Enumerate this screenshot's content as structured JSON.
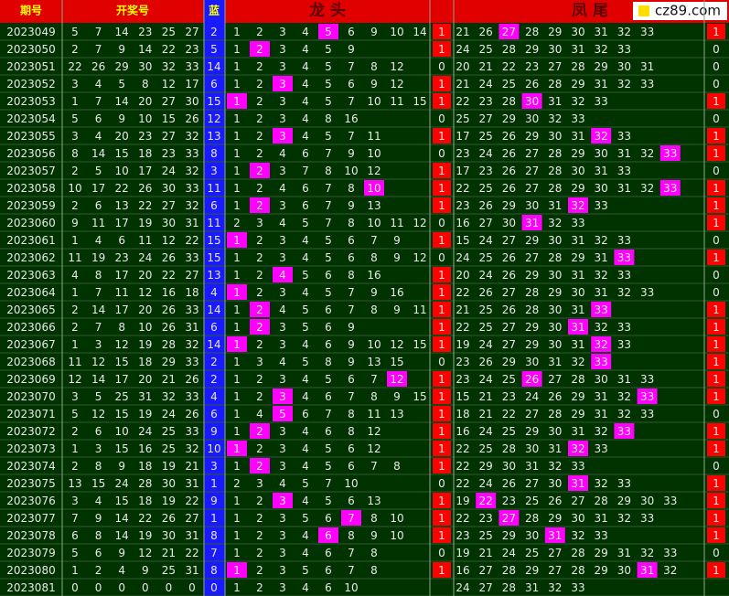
{
  "header": {
    "issue": "期号",
    "draw": "开奖号",
    "blue": "蓝",
    "head": "龙 头",
    "tail": "凤 尾",
    "logo": "cz89.com"
  },
  "rows": [
    {
      "issue": "2023049",
      "draw": [
        5,
        7,
        14,
        23,
        25,
        27
      ],
      "blue": 2,
      "head": [
        1,
        2,
        3,
        4,
        5,
        6,
        9,
        10,
        14
      ],
      "head_hit": 4,
      "head_flag": 1,
      "tail": [
        21,
        26,
        27,
        28,
        29,
        30,
        31,
        32,
        33
      ],
      "tail_hit": 2,
      "tail_flag": 1
    },
    {
      "issue": "2023050",
      "draw": [
        2,
        7,
        9,
        14,
        22,
        23
      ],
      "blue": 5,
      "head": [
        1,
        2,
        3,
        4,
        5,
        9
      ],
      "head_hit": 1,
      "head_flag": 1,
      "tail": [
        24,
        25,
        28,
        29,
        30,
        31,
        32,
        33
      ],
      "tail_hit": null,
      "tail_flag": 0
    },
    {
      "issue": "2023051",
      "draw": [
        22,
        26,
        29,
        30,
        32,
        33
      ],
      "blue": 14,
      "head": [
        1,
        2,
        3,
        4,
        5,
        7,
        8,
        12
      ],
      "head_hit": null,
      "head_flag": 0,
      "tail": [
        20,
        21,
        22,
        23,
        27,
        28,
        29,
        30,
        31
      ],
      "tail_hit": null,
      "tail_flag": 0
    },
    {
      "issue": "2023052",
      "draw": [
        3,
        4,
        5,
        8,
        12,
        17
      ],
      "blue": 6,
      "head": [
        1,
        2,
        3,
        4,
        5,
        6,
        9,
        12
      ],
      "head_hit": 2,
      "head_flag": 1,
      "tail": [
        21,
        24,
        25,
        26,
        28,
        29,
        31,
        32,
        33
      ],
      "tail_hit": null,
      "tail_flag": 0
    },
    {
      "issue": "2023053",
      "draw": [
        1,
        7,
        14,
        20,
        27,
        30
      ],
      "blue": 15,
      "head": [
        1,
        2,
        3,
        4,
        5,
        7,
        10,
        11,
        15
      ],
      "head_hit": 0,
      "head_flag": 1,
      "tail": [
        22,
        23,
        28,
        30,
        31,
        32,
        33
      ],
      "tail_hit": 3,
      "tail_flag": 1
    },
    {
      "issue": "2023054",
      "draw": [
        5,
        6,
        9,
        10,
        15,
        26
      ],
      "blue": 12,
      "head": [
        1,
        2,
        3,
        4,
        8,
        16
      ],
      "head_hit": null,
      "head_flag": 0,
      "tail": [
        25,
        27,
        29,
        30,
        32,
        33
      ],
      "tail_hit": null,
      "tail_flag": 0
    },
    {
      "issue": "2023055",
      "draw": [
        3,
        4,
        20,
        23,
        27,
        32
      ],
      "blue": 13,
      "head": [
        1,
        2,
        3,
        4,
        5,
        7,
        11
      ],
      "head_hit": 2,
      "head_flag": 1,
      "tail": [
        17,
        25,
        26,
        29,
        30,
        31,
        32,
        33
      ],
      "tail_hit": 6,
      "tail_flag": 1
    },
    {
      "issue": "2023056",
      "draw": [
        8,
        14,
        15,
        18,
        23,
        33
      ],
      "blue": 8,
      "head": [
        1,
        2,
        4,
        6,
        7,
        9,
        10
      ],
      "head_hit": null,
      "head_flag": 0,
      "tail": [
        23,
        24,
        26,
        27,
        28,
        29,
        30,
        31,
        32,
        33
      ],
      "tail_hit": 9,
      "tail_flag": 1
    },
    {
      "issue": "2023057",
      "draw": [
        2,
        5,
        10,
        17,
        24,
        32
      ],
      "blue": 3,
      "head": [
        1,
        2,
        3,
        7,
        8,
        10,
        12
      ],
      "head_hit": 1,
      "head_flag": 1,
      "tail": [
        17,
        23,
        26,
        27,
        28,
        30,
        31,
        33
      ],
      "tail_hit": null,
      "tail_flag": 0
    },
    {
      "issue": "2023058",
      "draw": [
        10,
        17,
        22,
        26,
        30,
        33
      ],
      "blue": 11,
      "head": [
        1,
        2,
        4,
        6,
        7,
        8,
        10
      ],
      "head_hit": 6,
      "head_flag": 1,
      "tail": [
        22,
        25,
        26,
        27,
        28,
        29,
        30,
        31,
        32,
        33
      ],
      "tail_hit": 9,
      "tail_flag": 1
    },
    {
      "issue": "2023059",
      "draw": [
        2,
        6,
        13,
        22,
        27,
        32
      ],
      "blue": 6,
      "head": [
        1,
        2,
        3,
        6,
        7,
        9,
        13
      ],
      "head_hit": 1,
      "head_flag": 1,
      "tail": [
        23,
        26,
        29,
        30,
        31,
        32,
        33
      ],
      "tail_hit": 5,
      "tail_flag": 1
    },
    {
      "issue": "2023060",
      "draw": [
        9,
        11,
        17,
        19,
        30,
        31
      ],
      "blue": 11,
      "head": [
        2,
        3,
        4,
        5,
        7,
        8,
        10,
        11,
        12
      ],
      "head_hit": null,
      "head_flag": 0,
      "tail": [
        16,
        27,
        30,
        31,
        32,
        33
      ],
      "tail_hit": 3,
      "tail_flag": 1
    },
    {
      "issue": "2023061",
      "draw": [
        1,
        4,
        6,
        11,
        12,
        22
      ],
      "blue": 15,
      "head": [
        1,
        2,
        3,
        4,
        5,
        6,
        7,
        9
      ],
      "head_hit": 0,
      "head_flag": 1,
      "tail": [
        15,
        24,
        27,
        29,
        30,
        31,
        32,
        33
      ],
      "tail_hit": null,
      "tail_flag": 0
    },
    {
      "issue": "2023062",
      "draw": [
        11,
        19,
        23,
        24,
        26,
        33
      ],
      "blue": 15,
      "head": [
        1,
        2,
        3,
        4,
        5,
        6,
        8,
        9,
        12
      ],
      "head_hit": null,
      "head_flag": 0,
      "tail": [
        24,
        25,
        26,
        27,
        28,
        29,
        31,
        33
      ],
      "tail_hit": 7,
      "tail_flag": 1
    },
    {
      "issue": "2023063",
      "draw": [
        4,
        8,
        17,
        20,
        22,
        27
      ],
      "blue": 13,
      "head": [
        1,
        2,
        4,
        5,
        6,
        8,
        16
      ],
      "head_hit": 2,
      "head_flag": 1,
      "tail": [
        20,
        24,
        26,
        29,
        30,
        31,
        32,
        33
      ],
      "tail_hit": null,
      "tail_flag": 0
    },
    {
      "issue": "2023064",
      "draw": [
        1,
        7,
        11,
        12,
        16,
        18
      ],
      "blue": 4,
      "head": [
        1,
        2,
        3,
        4,
        5,
        7,
        9,
        16
      ],
      "head_hit": 0,
      "head_flag": 1,
      "tail": [
        22,
        26,
        27,
        28,
        29,
        30,
        31,
        32,
        33
      ],
      "tail_hit": null,
      "tail_flag": 0
    },
    {
      "issue": "2023065",
      "draw": [
        2,
        14,
        17,
        20,
        26,
        33
      ],
      "blue": 14,
      "head": [
        1,
        2,
        4,
        5,
        6,
        7,
        8,
        9,
        11
      ],
      "head_hit": 1,
      "head_flag": 1,
      "tail": [
        21,
        25,
        26,
        28,
        30,
        31,
        33
      ],
      "tail_hit": 6,
      "tail_flag": 1
    },
    {
      "issue": "2023066",
      "draw": [
        2,
        7,
        8,
        10,
        26,
        31
      ],
      "blue": 6,
      "head": [
        1,
        2,
        3,
        5,
        6,
        9
      ],
      "head_hit": 1,
      "head_flag": 1,
      "tail": [
        22,
        25,
        27,
        29,
        30,
        31,
        32,
        33
      ],
      "tail_hit": 5,
      "tail_flag": 1
    },
    {
      "issue": "2023067",
      "draw": [
        1,
        3,
        12,
        19,
        28,
        32
      ],
      "blue": 14,
      "head": [
        1,
        2,
        3,
        4,
        6,
        9,
        10,
        12,
        15
      ],
      "head_hit": 0,
      "head_flag": 1,
      "tail": [
        19,
        24,
        27,
        29,
        30,
        31,
        32,
        33
      ],
      "tail_hit": 6,
      "tail_flag": 1
    },
    {
      "issue": "2023068",
      "draw": [
        11,
        12,
        15,
        18,
        29,
        33
      ],
      "blue": 2,
      "head": [
        1,
        3,
        4,
        5,
        8,
        9,
        13,
        15
      ],
      "head_hit": null,
      "head_flag": 0,
      "tail": [
        23,
        26,
        29,
        30,
        31,
        32,
        33
      ],
      "tail_hit": 6,
      "tail_flag": 1
    },
    {
      "issue": "2023069",
      "draw": [
        12,
        14,
        17,
        20,
        21,
        26
      ],
      "blue": 2,
      "head": [
        1,
        2,
        3,
        4,
        5,
        6,
        7,
        12
      ],
      "head_hit": 7,
      "head_flag": 1,
      "tail": [
        23,
        24,
        25,
        26,
        27,
        28,
        30,
        31,
        33
      ],
      "tail_hit": 3,
      "tail_flag": 1
    },
    {
      "issue": "2023070",
      "draw": [
        3,
        5,
        25,
        31,
        32,
        33
      ],
      "blue": 4,
      "head": [
        1,
        2,
        3,
        4,
        6,
        7,
        8,
        9,
        15
      ],
      "head_hit": 2,
      "head_flag": 1,
      "tail": [
        15,
        21,
        23,
        24,
        26,
        29,
        31,
        32,
        33
      ],
      "tail_hit": 8,
      "tail_flag": 1
    },
    {
      "issue": "2023071",
      "draw": [
        5,
        12,
        15,
        19,
        24,
        26
      ],
      "blue": 6,
      "head": [
        1,
        4,
        5,
        6,
        7,
        8,
        11,
        13
      ],
      "head_hit": 2,
      "head_flag": 1,
      "tail": [
        18,
        21,
        22,
        27,
        28,
        29,
        31,
        32,
        33
      ],
      "tail_hit": null,
      "tail_flag": 0
    },
    {
      "issue": "2023072",
      "draw": [
        2,
        6,
        10,
        24,
        25,
        33
      ],
      "blue": 9,
      "head": [
        1,
        2,
        3,
        4,
        6,
        8,
        12
      ],
      "head_hit": 1,
      "head_flag": 1,
      "tail": [
        16,
        24,
        25,
        29,
        30,
        31,
        32,
        33
      ],
      "tail_hit": 7,
      "tail_flag": 1
    },
    {
      "issue": "2023073",
      "draw": [
        1,
        3,
        15,
        16,
        25,
        32
      ],
      "blue": 10,
      "head": [
        1,
        2,
        3,
        4,
        5,
        6,
        12
      ],
      "head_hit": 0,
      "head_flag": 1,
      "tail": [
        22,
        25,
        28,
        30,
        31,
        32,
        33
      ],
      "tail_hit": 5,
      "tail_flag": 1
    },
    {
      "issue": "2023074",
      "draw": [
        2,
        8,
        9,
        18,
        19,
        21
      ],
      "blue": 3,
      "head": [
        1,
        2,
        3,
        4,
        5,
        6,
        7,
        8
      ],
      "head_hit": 1,
      "head_flag": 1,
      "tail": [
        22,
        29,
        30,
        31,
        32,
        33
      ],
      "tail_hit": null,
      "tail_flag": 0
    },
    {
      "issue": "2023075",
      "draw": [
        13,
        15,
        24,
        28,
        30,
        31
      ],
      "blue": 1,
      "head": [
        2,
        3,
        4,
        5,
        7,
        10
      ],
      "head_hit": null,
      "head_flag": 0,
      "tail": [
        22,
        24,
        26,
        27,
        30,
        31,
        32,
        33
      ],
      "tail_hit": 5,
      "tail_flag": 1
    },
    {
      "issue": "2023076",
      "draw": [
        3,
        4,
        15,
        18,
        19,
        22
      ],
      "blue": 9,
      "head": [
        1,
        2,
        3,
        4,
        5,
        6,
        13
      ],
      "head_hit": 2,
      "head_flag": 1,
      "tail": [
        19,
        22,
        23,
        25,
        26,
        27,
        28,
        29,
        30,
        33
      ],
      "tail_hit": 1,
      "tail_flag": 1
    },
    {
      "issue": "2023077",
      "draw": [
        7,
        9,
        14,
        22,
        26,
        27
      ],
      "blue": 1,
      "head": [
        1,
        2,
        3,
        5,
        6,
        7,
        8,
        10
      ],
      "head_hit": 5,
      "head_flag": 1,
      "tail": [
        22,
        23,
        27,
        28,
        29,
        30,
        31,
        32,
        33
      ],
      "tail_hit": 2,
      "tail_flag": 1
    },
    {
      "issue": "2023078",
      "draw": [
        6,
        8,
        14,
        19,
        30,
        31
      ],
      "blue": 8,
      "head": [
        1,
        2,
        3,
        4,
        6,
        8,
        9,
        10
      ],
      "head_hit": 4,
      "head_flag": 1,
      "tail": [
        23,
        25,
        29,
        30,
        31,
        32,
        33
      ],
      "tail_hit": 4,
      "tail_flag": 1
    },
    {
      "issue": "2023079",
      "draw": [
        5,
        6,
        9,
        12,
        21,
        22
      ],
      "blue": 7,
      "head": [
        1,
        2,
        3,
        4,
        6,
        7,
        8
      ],
      "head_hit": null,
      "head_flag": 0,
      "tail": [
        19,
        21,
        24,
        25,
        27,
        28,
        29,
        31,
        32,
        33
      ],
      "tail_hit": null,
      "tail_flag": 0
    },
    {
      "issue": "2023080",
      "draw": [
        1,
        2,
        4,
        9,
        25,
        31
      ],
      "blue": 8,
      "head": [
        1,
        2,
        3,
        5,
        6,
        7,
        8
      ],
      "head_hit": 0,
      "head_flag": 1,
      "tail": [
        16,
        27,
        28,
        29,
        27,
        28,
        29,
        30,
        31,
        32
      ],
      "tail_hit": 8,
      "tail_flag": 1
    },
    {
      "issue": "2023081",
      "draw": [
        0,
        0,
        0,
        0,
        0,
        0
      ],
      "blue": 0,
      "head": [
        1,
        2,
        3,
        4,
        6,
        10
      ],
      "head_hit": null,
      "head_flag": null,
      "tail": [
        24,
        27,
        28,
        31,
        32,
        33
      ],
      "tail_hit": null,
      "tail_flag": null
    }
  ]
}
